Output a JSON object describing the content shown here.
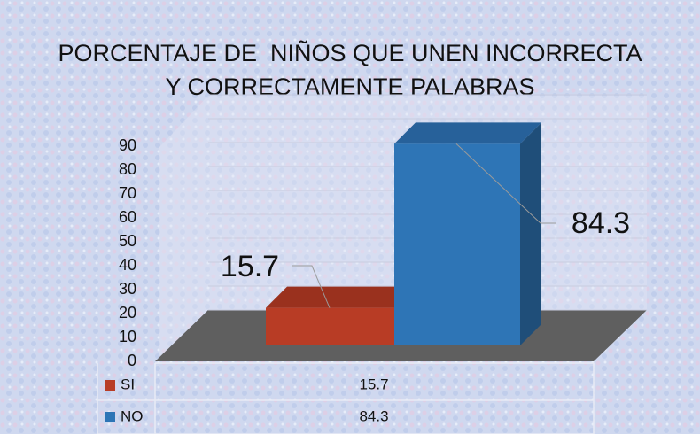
{
  "chart_data": {
    "type": "bar3d",
    "title": [
      "PORCENTAJE DE  NIÑOS QUE UNEN INCORRECTA",
      "Y CORRECTAMENTE PALABRAS"
    ],
    "categories": [
      null
    ],
    "series": [
      {
        "name": "SI",
        "color": "#b83c25",
        "values": [
          15.7
        ]
      },
      {
        "name": "NO",
        "color": "#2e75b6",
        "values": [
          84.3
        ]
      }
    ],
    "ylim": [
      0,
      90
    ],
    "yticks": [
      0,
      10,
      20,
      30,
      40,
      50,
      60,
      70,
      80,
      90
    ],
    "grid": true,
    "data_table": true
  }
}
